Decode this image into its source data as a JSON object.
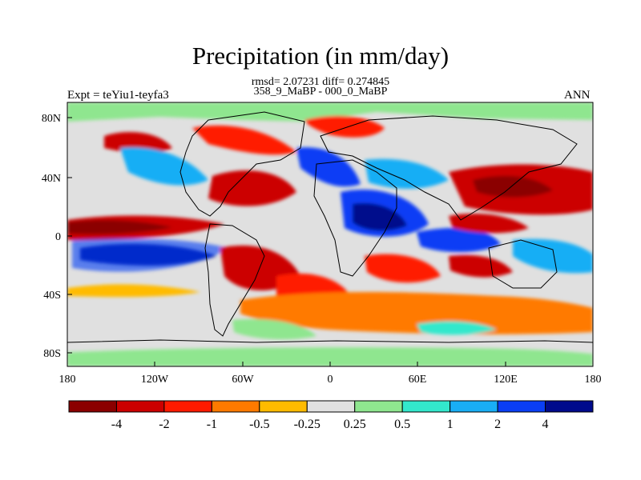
{
  "header": {
    "title": "Precipitation (in mm/day)",
    "stats": "rmsd= 2.07231 diff= 0.274845",
    "subtitle": "358_9_MaBP - 000_0_MaBP",
    "experiment": "Expt = teYiu1-teyfa3",
    "season": "ANN"
  },
  "axes": {
    "x_ticks": [
      "180",
      "120W",
      "60W",
      "0",
      "60E",
      "120E",
      "180"
    ],
    "y_ticks": [
      "80N",
      "40N",
      "0",
      "40S",
      "80S"
    ]
  },
  "colorbar": {
    "levels": [
      "-4",
      "-2",
      "-1",
      "-0.5",
      "-0.25",
      "0.25",
      "0.5",
      "1",
      "2",
      "4"
    ],
    "colors": [
      "#8b0000",
      "#cc0000",
      "#ff1a00",
      "#ff7a00",
      "#ffbb00",
      "#e0e0e0",
      "#8fe68f",
      "#33e8cc",
      "#19aef5",
      "#0a3ef5",
      "#000a8c"
    ]
  }
}
